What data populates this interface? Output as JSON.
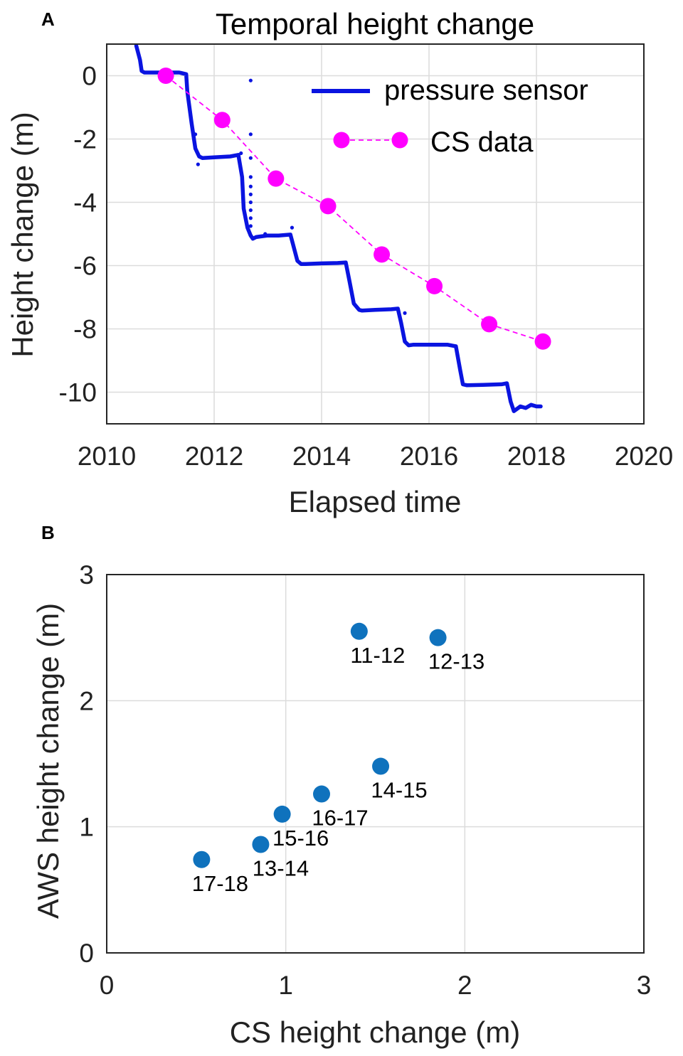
{
  "chart_data": [
    {
      "panel": "A",
      "type": "line",
      "title": "Temporal height change",
      "xlabel": "Elapsed time",
      "ylabel": "Height change (m)",
      "xlim": [
        2010,
        2020
      ],
      "ylim": [
        -11,
        1
      ],
      "xticks": [
        2010,
        2012,
        2014,
        2016,
        2018,
        2020
      ],
      "yticks": [
        0,
        -2,
        -4,
        -6,
        -8,
        -10
      ],
      "grid": true,
      "legend_position": "top-right",
      "series": [
        {
          "name": "pressure sensor",
          "color": "#0a14e0",
          "style": "solid",
          "x": [
            2010.55,
            2010.62,
            2010.65,
            2010.7,
            2011.0,
            2011.35,
            2011.48,
            2011.5,
            2011.58,
            2011.65,
            2011.72,
            2011.78,
            2012.0,
            2012.3,
            2012.45,
            2012.52,
            2012.55,
            2012.62,
            2012.68,
            2012.72,
            2012.78,
            2012.85,
            2013.0,
            2013.2,
            2013.42,
            2013.48,
            2013.55,
            2013.62,
            2013.7,
            2014.0,
            2014.3,
            2014.45,
            2014.52,
            2014.6,
            2014.7,
            2014.75,
            2015.0,
            2015.3,
            2015.42,
            2015.48,
            2015.55,
            2015.62,
            2015.7,
            2016.0,
            2016.35,
            2016.5,
            2016.58,
            2016.63,
            2016.7,
            2017.0,
            2017.35,
            2017.45,
            2017.52,
            2017.58,
            2017.62,
            2017.7,
            2017.8,
            2017.9,
            2018.0,
            2018.08
          ],
          "y": [
            0.95,
            0.5,
            0.15,
            0.1,
            0.1,
            0.1,
            0.05,
            -0.5,
            -1.5,
            -2.3,
            -2.55,
            -2.6,
            -2.58,
            -2.55,
            -2.5,
            -3.2,
            -4.2,
            -4.8,
            -5.05,
            -5.15,
            -5.1,
            -5.08,
            -5.05,
            -5.05,
            -5.02,
            -5.4,
            -5.85,
            -5.95,
            -5.95,
            -5.93,
            -5.92,
            -5.9,
            -6.5,
            -7.2,
            -7.4,
            -7.42,
            -7.4,
            -7.38,
            -7.36,
            -7.8,
            -8.4,
            -8.52,
            -8.5,
            -8.5,
            -8.5,
            -8.55,
            -9.3,
            -9.75,
            -9.78,
            -9.77,
            -9.75,
            -9.72,
            -10.3,
            -10.6,
            -10.55,
            -10.45,
            -10.5,
            -10.4,
            -10.45,
            -10.45
          ],
          "scatter_points": {
            "x": [
              2012.68,
              2012.68,
              2012.68,
              2012.68,
              2012.68,
              2012.68,
              2012.68,
              2012.68,
              2012.68,
              2012.68,
              2011.65,
              2011.7,
              2013.45,
              2015.55,
              2012.95,
              2012.5
            ],
            "y": [
              -0.15,
              -1.85,
              -2.6,
              -3.2,
              -3.5,
              -3.75,
              -4.0,
              -4.25,
              -4.5,
              -4.75,
              -1.85,
              -2.8,
              -4.8,
              -7.5,
              -5.0,
              -2.45
            ]
          }
        },
        {
          "name": "CS data",
          "color": "#ff00ff",
          "style": "dashed",
          "markers": true,
          "x": [
            2011.1,
            2012.15,
            2013.15,
            2014.12,
            2015.12,
            2016.1,
            2017.12,
            2018.12
          ],
          "y": [
            0.0,
            -1.4,
            -3.25,
            -4.12,
            -5.65,
            -6.65,
            -7.85,
            -8.4
          ]
        }
      ]
    },
    {
      "panel": "B",
      "type": "scatter",
      "title": "",
      "xlabel": "CS height change (m)",
      "ylabel": "AWS height change (m)",
      "xlim": [
        0,
        3
      ],
      "ylim": [
        0,
        3
      ],
      "xticks": [
        0,
        1,
        2,
        3
      ],
      "yticks": [
        0,
        1,
        2,
        3
      ],
      "grid": true,
      "color": "#0f72bd",
      "points": [
        {
          "label": "11-12",
          "x": 1.41,
          "y": 2.55
        },
        {
          "label": "12-13",
          "x": 1.85,
          "y": 2.5
        },
        {
          "label": "14-15",
          "x": 1.53,
          "y": 1.48
        },
        {
          "label": "16-17",
          "x": 1.2,
          "y": 1.26
        },
        {
          "label": "15-16",
          "x": 0.98,
          "y": 1.1
        },
        {
          "label": "13-14",
          "x": 0.86,
          "y": 0.86
        },
        {
          "label": "17-18",
          "x": 0.53,
          "y": 0.74
        }
      ]
    }
  ]
}
